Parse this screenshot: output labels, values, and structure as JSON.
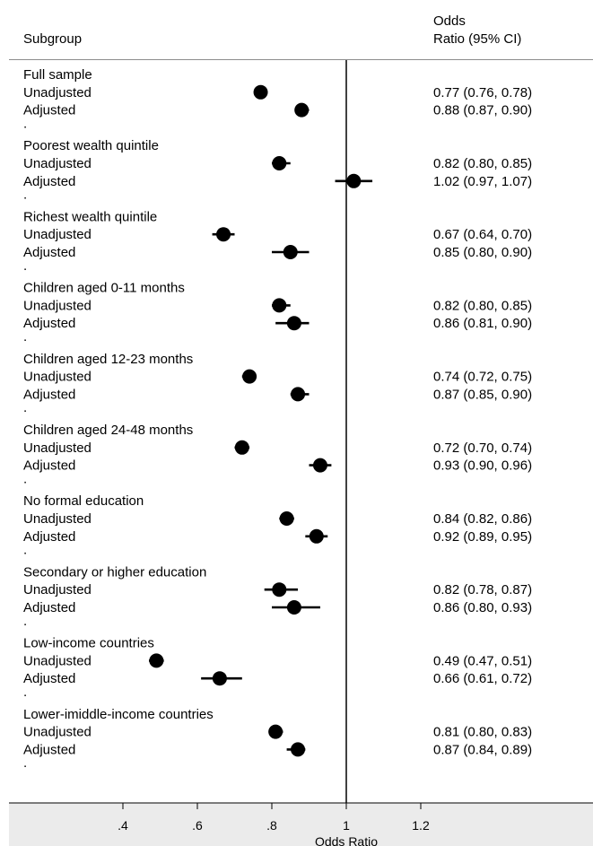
{
  "header": {
    "subgroup_label": "Subgroup",
    "or_label_line1": "Odds",
    "or_label_line2": "Ratio (95% CI)"
  },
  "chart_data": {
    "type": "forest",
    "xlabel": "Odds Ratio",
    "xticks": [
      ".4",
      ".6",
      ".8",
      "1",
      "1.2"
    ],
    "xtick_values": [
      0.4,
      0.6,
      0.8,
      1.0,
      1.2
    ],
    "reference_line": 1,
    "groups": [
      {
        "name": "Full sample",
        "rows": [
          {
            "label": "Unadjusted",
            "or": 0.77,
            "lo": 0.76,
            "hi": 0.78,
            "ci_text": "0.77 (0.76, 0.78)"
          },
          {
            "label": "Adjusted",
            "or": 0.88,
            "lo": 0.87,
            "hi": 0.9,
            "ci_text": "0.88 (0.87, 0.90)"
          }
        ]
      },
      {
        "name": "Poorest wealth quintile",
        "rows": [
          {
            "label": "Unadjusted",
            "or": 0.82,
            "lo": 0.8,
            "hi": 0.85,
            "ci_text": "0.82 (0.80, 0.85)"
          },
          {
            "label": "Adjusted",
            "or": 1.02,
            "lo": 0.97,
            "hi": 1.07,
            "ci_text": "1.02 (0.97, 1.07)"
          }
        ]
      },
      {
        "name": "Richest wealth quintile",
        "rows": [
          {
            "label": "Unadjusted",
            "or": 0.67,
            "lo": 0.64,
            "hi": 0.7,
            "ci_text": "0.67 (0.64, 0.70)"
          },
          {
            "label": "Adjusted",
            "or": 0.85,
            "lo": 0.8,
            "hi": 0.9,
            "ci_text": "0.85 (0.80, 0.90)"
          }
        ]
      },
      {
        "name": "Children aged 0-11 months",
        "rows": [
          {
            "label": "Unadjusted",
            "or": 0.82,
            "lo": 0.8,
            "hi": 0.85,
            "ci_text": "0.82 (0.80, 0.85)"
          },
          {
            "label": "Adjusted",
            "or": 0.86,
            "lo": 0.81,
            "hi": 0.9,
            "ci_text": "0.86 (0.81, 0.90)"
          }
        ]
      },
      {
        "name": "Children aged 12-23 months",
        "rows": [
          {
            "label": "Unadjusted",
            "or": 0.74,
            "lo": 0.72,
            "hi": 0.75,
            "ci_text": "0.74 (0.72, 0.75)"
          },
          {
            "label": "Adjusted",
            "or": 0.87,
            "lo": 0.85,
            "hi": 0.9,
            "ci_text": "0.87 (0.85, 0.90)"
          }
        ]
      },
      {
        "name": "Children aged 24-48 months",
        "rows": [
          {
            "label": "Unadjusted",
            "or": 0.72,
            "lo": 0.7,
            "hi": 0.74,
            "ci_text": "0.72 (0.70, 0.74)"
          },
          {
            "label": "Adjusted",
            "or": 0.93,
            "lo": 0.9,
            "hi": 0.96,
            "ci_text": "0.93 (0.90, 0.96)"
          }
        ]
      },
      {
        "name": "No formal education",
        "rows": [
          {
            "label": "Unadjusted",
            "or": 0.84,
            "lo": 0.82,
            "hi": 0.86,
            "ci_text": "0.84 (0.82, 0.86)"
          },
          {
            "label": "Adjusted",
            "or": 0.92,
            "lo": 0.89,
            "hi": 0.95,
            "ci_text": "0.92 (0.89, 0.95)"
          }
        ]
      },
      {
        "name": "Secondary or higher education",
        "rows": [
          {
            "label": "Unadjusted",
            "or": 0.82,
            "lo": 0.78,
            "hi": 0.87,
            "ci_text": "0.82 (0.78, 0.87)"
          },
          {
            "label": "Adjusted",
            "or": 0.86,
            "lo": 0.8,
            "hi": 0.93,
            "ci_text": "0.86 (0.80, 0.93)"
          }
        ]
      },
      {
        "name": "Low-income countries",
        "rows": [
          {
            "label": "Unadjusted",
            "or": 0.49,
            "lo": 0.47,
            "hi": 0.51,
            "ci_text": "0.49 (0.47, 0.51)"
          },
          {
            "label": "Adjusted",
            "or": 0.66,
            "lo": 0.61,
            "hi": 0.72,
            "ci_text": "0.66 (0.61, 0.72)"
          }
        ]
      },
      {
        "name": "Lower-imiddle-income countries",
        "rows": [
          {
            "label": "Unadjusted",
            "or": 0.81,
            "lo": 0.8,
            "hi": 0.83,
            "ci_text": "0.81 (0.80, 0.83)"
          },
          {
            "label": "Adjusted",
            "or": 0.87,
            "lo": 0.84,
            "hi": 0.89,
            "ci_text": "0.87 (0.84, 0.89)"
          }
        ]
      }
    ],
    "spacer_text": ".",
    "colors": {
      "marker": "#000000",
      "axis_band": "#ebebeb",
      "rule": "#8c8c8c"
    }
  }
}
